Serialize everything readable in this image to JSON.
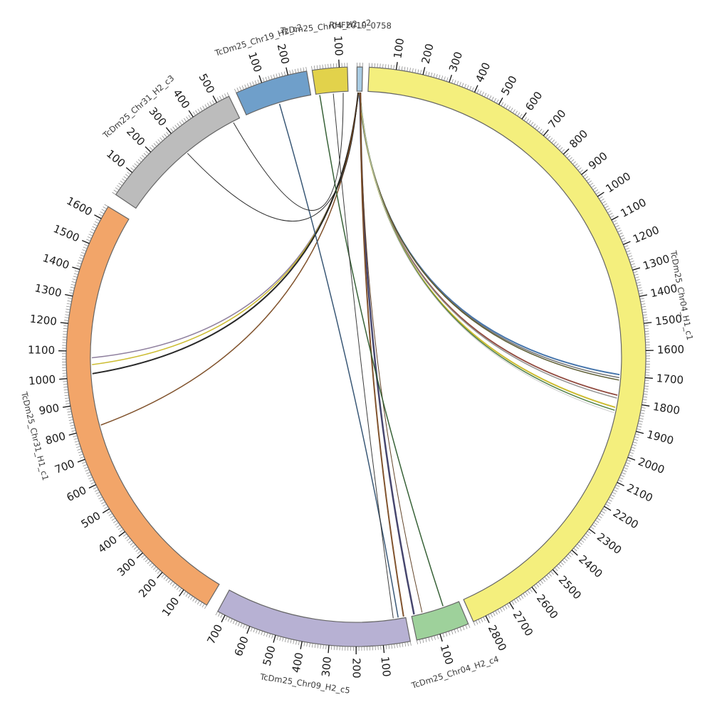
{
  "figure": {
    "kind": "circos-synteny-plot",
    "background": "#ffffff"
  },
  "chart_data": {
    "type": "chord",
    "title": "",
    "legend": "none",
    "grid": "off",
    "tick": {
      "interval": 100,
      "minor": 10
    },
    "segments": [
      {
        "id": "rhf",
        "label": "RHF2010_0758",
        "color": "#a9cce3",
        "start_angle": 0.2,
        "end_angle": 1.3,
        "units": 20
      },
      {
        "id": "chr04_h1",
        "label": "TcDm25_Chr04_H1_c1",
        "color": "#f4ef7d",
        "start_angle": 2.6,
        "end_angle": 156.1,
        "units": 2850
      },
      {
        "id": "chr04_h2c4",
        "label": "TcDm25_Chr04_H2_c4",
        "color": "#9ed19b",
        "start_angle": 157.2,
        "end_angle": 167.9,
        "units": 180
      },
      {
        "id": "chr09_h2",
        "label": "TcDm25_Chr09_H2_c5",
        "color": "#b7b1d3",
        "start_angle": 169.2,
        "end_angle": 208.5,
        "units": 730
      },
      {
        "id": "chr31_h1",
        "label": "TcDm25_Chr31_H1_c1",
        "color": "#f2a569",
        "start_angle": 211.0,
        "end_angle": 301.2,
        "units": 1650
      },
      {
        "id": "chr31_h2",
        "label": "TcDm25_Chr31_H2_c3",
        "color": "#bcbcbc",
        "start_angle": 304.0,
        "end_angle": 334.0,
        "units": 550
      },
      {
        "id": "chr19_h2",
        "label": "TcDm25_Chr19_H2_c2",
        "color": "#6f9fca",
        "start_angle": 335.6,
        "end_angle": 350.2,
        "units": 270
      },
      {
        "id": "chr04_h2c2",
        "label": "TcDm25_Chr04_H2_c2",
        "color": "#e2d24b",
        "start_angle": 351.3,
        "end_angle": 358.3,
        "units": 130
      }
    ],
    "links": [
      {
        "source": {
          "segment": "rhf",
          "position": 8
        },
        "target": {
          "segment": "chr04_h1",
          "position": 1695
        },
        "color": "#3d6fa8",
        "width": 2
      },
      {
        "source": {
          "segment": "rhf",
          "position": 9
        },
        "target": {
          "segment": "chr04_h1",
          "position": 1707
        },
        "color": "#6b6b6b",
        "width": 1.5
      },
      {
        "source": {
          "segment": "rhf",
          "position": 10
        },
        "target": {
          "segment": "chr04_h1",
          "position": 1717
        },
        "color": "#55552a",
        "width": 1.5
      },
      {
        "source": {
          "segment": "rhf",
          "position": 10
        },
        "target": {
          "segment": "chr04_h1",
          "position": 1778
        },
        "color": "#8b4035",
        "width": 1.8
      },
      {
        "source": {
          "segment": "rhf",
          "position": 11
        },
        "target": {
          "segment": "chr04_h1",
          "position": 1790
        },
        "color": "#8c8c8c",
        "width": 1.5
      },
      {
        "source": {
          "segment": "rhf",
          "position": 11
        },
        "target": {
          "segment": "chr04_h1",
          "position": 1828
        },
        "color": "#c9b826",
        "width": 2
      },
      {
        "source": {
          "segment": "rhf",
          "position": 12
        },
        "target": {
          "segment": "chr04_h1",
          "position": 1840
        },
        "color": "#44783c",
        "width": 1.5
      },
      {
        "source": {
          "segment": "rhf",
          "position": 12
        },
        "target": {
          "segment": "chr04_h1",
          "position": 1850
        },
        "color": "#c8c8c8",
        "width": 1
      },
      {
        "source": {
          "segment": "rhf",
          "position": 13
        },
        "target": {
          "segment": "chr04_h2c4",
          "position": 170
        },
        "color": "#3c3c66",
        "width": 2.5
      },
      {
        "source": {
          "segment": "rhf",
          "position": 13
        },
        "target": {
          "segment": "chr04_h2c4",
          "position": 140
        },
        "color": "#5a3a1e",
        "width": 1
      },
      {
        "source": {
          "segment": "rhf",
          "position": 14
        },
        "target": {
          "segment": "chr09_h2",
          "position": 8
        },
        "color": "#7a4a22",
        "width": 2
      },
      {
        "source": {
          "segment": "rhf",
          "position": 6
        },
        "target": {
          "segment": "chr31_h1",
          "position": 1075
        },
        "color": "#8a7a9a",
        "width": 1.5
      },
      {
        "source": {
          "segment": "rhf",
          "position": 6
        },
        "target": {
          "segment": "chr31_h1",
          "position": 1048
        },
        "color": "#c9b826",
        "width": 1.5
      },
      {
        "source": {
          "segment": "rhf",
          "position": 5
        },
        "target": {
          "segment": "chr31_h1",
          "position": 1012
        },
        "color": "#1c1c1c",
        "width": 2
      },
      {
        "source": {
          "segment": "rhf",
          "position": 5
        },
        "target": {
          "segment": "chr31_h1",
          "position": 805
        },
        "color": "#7a4a22",
        "width": 1.5
      },
      {
        "source": {
          "segment": "rhf",
          "position": 4
        },
        "target": {
          "segment": "chr31_h2",
          "position": 300
        },
        "color": "#222222",
        "width": 1
      },
      {
        "source": {
          "segment": "chr19_h2",
          "position": 140
        },
        "target": {
          "segment": "chr09_h2",
          "position": 30
        },
        "color": "#2f4f6f",
        "width": 1.5
      },
      {
        "source": {
          "segment": "chr04_h2c2",
          "position": 15
        },
        "target": {
          "segment": "chr04_h2c4",
          "position": 60
        },
        "color": "#2d5a2d",
        "width": 1.5
      },
      {
        "source": {
          "segment": "chr04_h2c2",
          "position": 70
        },
        "target": {
          "segment": "chr09_h2",
          "position": 50
        },
        "color": "#333333",
        "width": 1
      },
      {
        "source": {
          "segment": "chr04_h2c2",
          "position": 110
        },
        "target": {
          "segment": "chr31_h2",
          "position": 520
        },
        "color": "#222222",
        "width": 1
      }
    ],
    "style": {
      "segment_border_color": "#666666",
      "minor_tick_color": "#808080",
      "major_tick_color": "#111111",
      "tick_label_color": "#1a1a1a",
      "name_label_color": "#3a3a3a"
    }
  }
}
